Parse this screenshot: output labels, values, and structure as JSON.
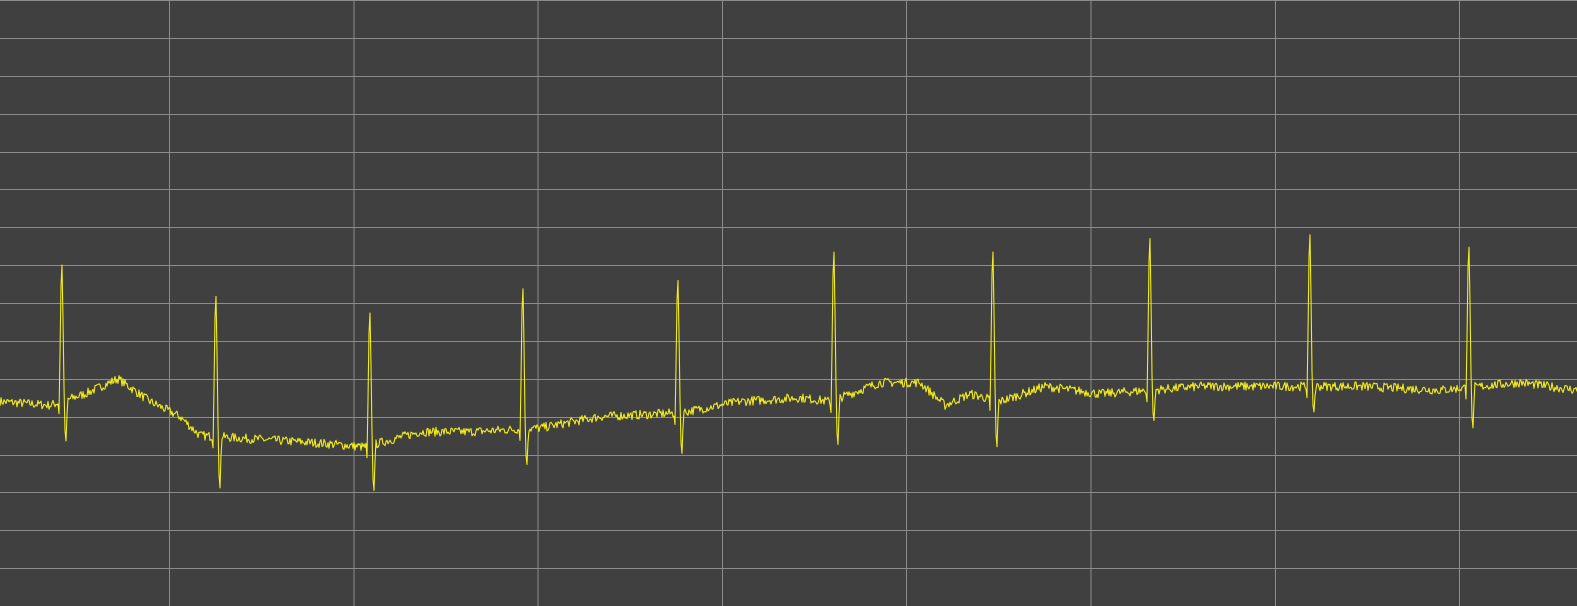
{
  "view": {
    "background_color": "#404040",
    "grid_color": "#8c8c8c",
    "trace_color": "#f2ec1a"
  },
  "chart_data": {
    "type": "line",
    "grid": true,
    "xlim": [
      0,
      1577
    ],
    "ylim": [
      -5.0,
      11.0
    ],
    "x_grid_step": 184.3,
    "y_grid_step": 1.0,
    "series": [
      {
        "baseline": [
          [
            0,
            0.4
          ],
          [
            50,
            0.3
          ],
          [
            85,
            0.6
          ],
          [
            118,
            1.0
          ],
          [
            150,
            0.4
          ],
          [
            180,
            0.0
          ],
          [
            200,
            -0.5
          ],
          [
            260,
            -0.6
          ],
          [
            320,
            -0.7
          ],
          [
            365,
            -0.8
          ],
          [
            420,
            -0.4
          ],
          [
            470,
            -0.4
          ],
          [
            540,
            -0.3
          ],
          [
            600,
            0.0
          ],
          [
            680,
            0.1
          ],
          [
            740,
            0.4
          ],
          [
            800,
            0.5
          ],
          [
            830,
            0.4
          ],
          [
            880,
            0.9
          ],
          [
            920,
            0.9
          ],
          [
            945,
            0.3
          ],
          [
            970,
            0.6
          ],
          [
            1000,
            0.4
          ],
          [
            1045,
            0.8
          ],
          [
            1100,
            0.6
          ],
          [
            1200,
            0.8
          ],
          [
            1280,
            0.8
          ],
          [
            1360,
            0.8
          ],
          [
            1440,
            0.7
          ],
          [
            1520,
            0.9
          ],
          [
            1577,
            0.7
          ]
        ],
        "beats": [
          {
            "x": 62,
            "r": 3.6,
            "s": -0.8
          },
          {
            "x": 216,
            "r": 3.7,
            "s": -1.0
          },
          {
            "x": 370,
            "r": 3.5,
            "s": -0.9
          },
          {
            "x": 523,
            "r": 3.7,
            "s": -0.7
          },
          {
            "x": 678,
            "r": 3.5,
            "s": -0.8
          },
          {
            "x": 834,
            "r": 3.9,
            "s": -0.9
          },
          {
            "x": 993,
            "r": 3.9,
            "s": -0.9
          },
          {
            "x": 1150,
            "r": 4.0,
            "s": -0.6
          },
          {
            "x": 1310,
            "r": 4.0,
            "s": -0.5
          },
          {
            "x": 1469,
            "r": 3.7,
            "s": -0.8
          }
        ],
        "noise": 0.12
      }
    ]
  }
}
